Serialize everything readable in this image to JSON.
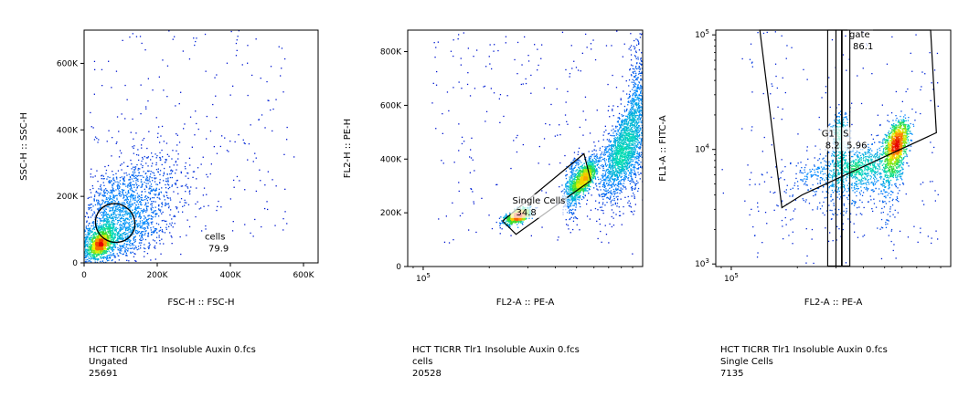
{
  "chart_data": [
    {
      "type": "scatter",
      "subtype": "density-scatter",
      "xlabel": "FSC-H :: FSC-H",
      "ylabel": "SSC-H :: SSC-H",
      "xscale": "linear",
      "yscale": "linear",
      "xlim": [
        0,
        640000
      ],
      "ylim": [
        0,
        700000
      ],
      "xticks": [
        {
          "v": 0,
          "label": "0"
        },
        {
          "v": 200000,
          "label": "200K"
        },
        {
          "v": 400000,
          "label": "400K"
        },
        {
          "v": 600000,
          "label": "600K"
        }
      ],
      "yticks": [
        {
          "v": 0,
          "label": "0"
        },
        {
          "v": 200000,
          "label": "200K"
        },
        {
          "v": 400000,
          "label": "400K"
        },
        {
          "v": 600000,
          "label": "600K"
        }
      ],
      "populations": [
        {
          "cx": 80000,
          "cy": 110000,
          "sx": 55000,
          "sy": 65000,
          "rho": 0.55,
          "n": 2600,
          "skew": 1.6
        },
        {
          "cx": 40000,
          "cy": 55000,
          "sx": 14000,
          "sy": 16000,
          "rho": 0.4,
          "n": 700,
          "skew": 1
        }
      ],
      "gates": [
        {
          "name": "cells",
          "value": "79.9",
          "shape": "ellipse",
          "cx": 85000,
          "cy": 120000,
          "rx": 95000,
          "ry": 60000,
          "angle_deg": 55,
          "label_at": [
            330000,
            70000
          ]
        }
      ],
      "caption": {
        "file": "HCT TICRR Tlr1 Insoluble Auxin 0.fcs",
        "population": "Ungated",
        "count": "25691"
      }
    },
    {
      "type": "scatter",
      "subtype": "density-scatter",
      "xlabel": "FL2-A :: PE-A",
      "ylabel": "FL2-H :: PE-H",
      "xscale": "log",
      "yscale": "linear",
      "xlim": [
        85000,
        1000000
      ],
      "ylim": [
        0,
        880000
      ],
      "xticks": [
        {
          "v": 100000,
          "label": "10^5"
        }
      ],
      "yticks": [
        {
          "v": 0,
          "label": "0"
        },
        {
          "v": 200000,
          "label": "200K"
        },
        {
          "v": 400000,
          "label": "400K"
        },
        {
          "v": 600000,
          "label": "600K"
        },
        {
          "v": 800000,
          "label": "800K"
        }
      ],
      "populations": [
        {
          "cx": 270000,
          "cy": 190000,
          "sx": 18000,
          "sy": 14000,
          "rho": 0.6,
          "n": 900,
          "skew": 1
        },
        {
          "cx": 540000,
          "cy": 330000,
          "sx": 35000,
          "sy": 35000,
          "rho": 0.7,
          "n": 1100,
          "skew": 1
        },
        {
          "cx": 790000,
          "cy": 420000,
          "sx": 80000,
          "sy": 90000,
          "rho": 0.6,
          "n": 1500,
          "skew": 1
        },
        {
          "cx": 940000,
          "cy": 560000,
          "sx": 50000,
          "sy": 150000,
          "rho": 0.3,
          "n": 700,
          "skew": 1
        },
        {
          "cx": 480000,
          "cy": 300000,
          "sx": 25000,
          "sy": 60000,
          "rho": 0.4,
          "n": 350,
          "skew": 1
        }
      ],
      "gates": [
        {
          "name": "Single Cells",
          "value": "34.8",
          "shape": "polygon",
          "points": [
            [
              230000,
              170000
            ],
            [
              265000,
              120000
            ],
            [
              580000,
              320000
            ],
            [
              540000,
              420000
            ]
          ],
          "label_at": [
            255000,
            235000
          ]
        }
      ],
      "caption": {
        "file": "HCT TICRR Tlr1 Insoluble Auxin 0.fcs",
        "population": "cells",
        "count": "20528"
      }
    },
    {
      "type": "scatter",
      "subtype": "density-scatter",
      "xlabel": "FL2-A :: PE-A",
      "ylabel": "FL1-A :: FITC-A",
      "xscale": "log",
      "yscale": "log",
      "xlim": [
        85000,
        1000000
      ],
      "ylim": [
        950,
        110000
      ],
      "xticks": [
        {
          "v": 100000,
          "label": "10^5"
        }
      ],
      "yticks": [
        {
          "v": 1000,
          "label": "10^3"
        },
        {
          "v": 10000,
          "label": "10^4"
        },
        {
          "v": 100000,
          "label": "10^5"
        }
      ],
      "populations": [
        {
          "cx": 560000,
          "cy": 10500,
          "sx": 40000,
          "sy": 3500,
          "rho": 0.5,
          "n": 1300,
          "skew": 1
        },
        {
          "cx": 360000,
          "cy": 6500,
          "sx": 90000,
          "sy": 2000,
          "rho": 0.4,
          "n": 1000,
          "skew": 1
        },
        {
          "cx": 310000,
          "cy": 13000,
          "sx": 15000,
          "sy": 4000,
          "rho": 0.1,
          "n": 300,
          "skew": 1
        }
      ],
      "gates": [
        {
          "name": "gate",
          "value": "86.1",
          "shape": "polygon",
          "points": [
            [
              170000,
              3100
            ],
            [
              210000,
              4000
            ],
            [
              860000,
              14000
            ],
            [
              810000,
              110000
            ],
            [
              330000,
              110000
            ],
            [
              135000,
              110000
            ]
          ],
          "label_at": [
            345000,
            95000
          ]
        },
        {
          "name": "G1",
          "value": "8.2",
          "shape": "rect",
          "x0": 275000,
          "x1": 300000,
          "y0": 960,
          "y1": 110000,
          "label_at": [
            258000,
            13000
          ]
        },
        {
          "name": "S",
          "value": "5.96",
          "shape": "rect",
          "x0": 320000,
          "x1": 347000,
          "y0": 960,
          "y1": 110000,
          "label_at": [
            323000,
            13000
          ]
        },
        {
          "name": "",
          "value": "",
          "shape": "rect",
          "x0": 300000,
          "x1": 318000,
          "y0": 960,
          "y1": 110000
        }
      ],
      "caption": {
        "file": "HCT TICRR Tlr1 Insoluble Auxin 0.fcs",
        "population": "Single Cells",
        "count": "7135"
      }
    }
  ]
}
